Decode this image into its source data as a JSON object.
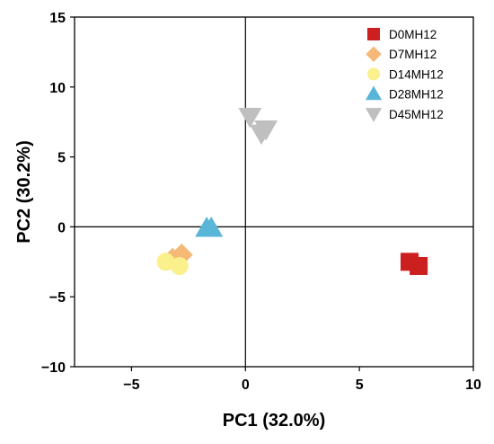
{
  "chart_data": {
    "type": "scatter",
    "xlabel": "PC1 (32.0%)",
    "ylabel": "PC2 (30.2%)",
    "xlim": [
      -7.5,
      10
    ],
    "ylim": [
      -10,
      15
    ],
    "xticks": [
      -5,
      0,
      5,
      10
    ],
    "xtick_labels": [
      "−5",
      "0",
      "5",
      "10"
    ],
    "yticks": [
      -10,
      -5,
      0,
      5,
      10,
      15
    ],
    "ytick_labels": [
      "−10",
      "−5",
      "0",
      "5",
      "10",
      "15"
    ],
    "grid": false,
    "zero_lines": true,
    "legend_position": "top-right",
    "series": [
      {
        "name": "D0MH12",
        "marker": "square",
        "color": "#cc1f1f",
        "x": [
          7.2,
          7.6
        ],
        "y": [
          -2.5,
          -2.8
        ]
      },
      {
        "name": "D7MH12",
        "marker": "diamond",
        "color": "#f5b877",
        "x": [
          -2.8,
          -3.2
        ],
        "y": [
          -2.0,
          -2.3
        ]
      },
      {
        "name": "D14MH12",
        "marker": "circle",
        "color": "#faf08c",
        "x": [
          -3.5,
          -2.9
        ],
        "y": [
          -2.5,
          -2.8
        ]
      },
      {
        "name": "D28MH12",
        "marker": "triangle-up",
        "color": "#59b6d9",
        "x": [
          -1.7,
          -1.5
        ],
        "y": [
          -0.1,
          -0.1
        ]
      },
      {
        "name": "D45MH12",
        "marker": "triangle-down",
        "color": "#bfbfbf",
        "x": [
          0.2,
          0.9,
          0.7
        ],
        "y": [
          7.9,
          7.0,
          6.7
        ]
      }
    ]
  }
}
